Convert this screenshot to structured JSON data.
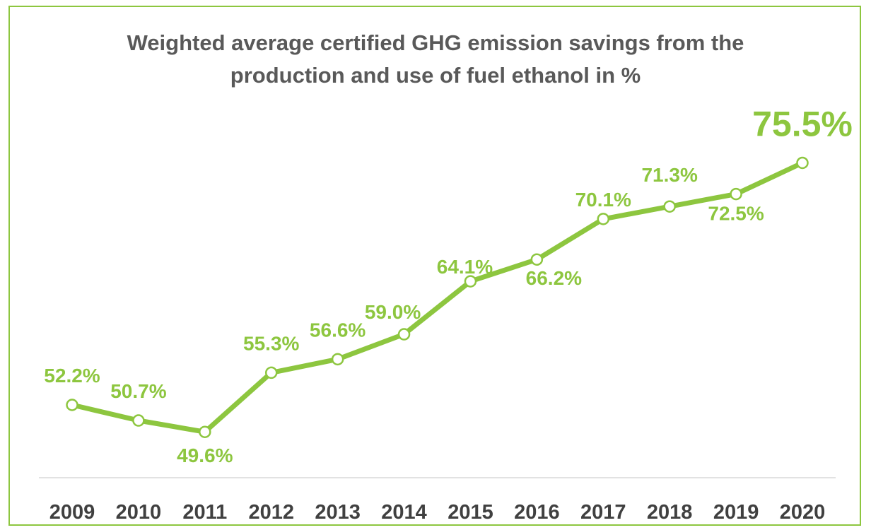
{
  "chart_data": {
    "type": "line",
    "title": "Weighted average certified GHG emission savings from the production and use of fuel ethanol in %",
    "title_lines": [
      "Weighted average certified GHG emission savings from the",
      "production and use of fuel ethanol in %"
    ],
    "xlabel": "",
    "ylabel": "",
    "categories": [
      "2009",
      "2010",
      "2011",
      "2012",
      "2013",
      "2014",
      "2015",
      "2016",
      "2017",
      "2018",
      "2019",
      "2020"
    ],
    "series": [
      {
        "values": [
          52.2,
          50.7,
          49.6,
          55.3,
          56.6,
          59.0,
          64.1,
          66.2,
          70.1,
          71.3,
          72.5,
          75.5
        ],
        "data_labels": [
          "52.2%",
          "50.7%",
          "49.6%",
          "55.3%",
          "56.6%",
          "59.0%",
          "64.1%",
          "66.2%",
          "70.1%",
          "71.3%",
          "72.5%",
          "75.5%"
        ]
      }
    ],
    "grid": false,
    "legend": "none",
    "line_color": "#8DC63F",
    "frame_color": "#8DC63F",
    "title_color": "#595959",
    "tick_color": "#404040"
  }
}
